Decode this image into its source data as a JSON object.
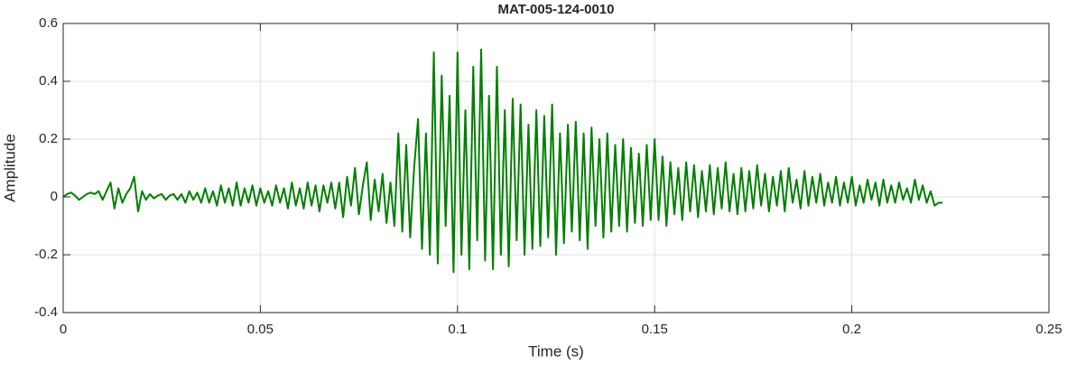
{
  "chart_data": {
    "type": "line",
    "title": "MAT-005-124-0010",
    "xlabel": "Time (s)",
    "ylabel": "Amplitude",
    "xlim": [
      0,
      0.25
    ],
    "ylim": [
      -0.4,
      0.6
    ],
    "xticks": [
      0,
      0.05,
      0.1,
      0.15,
      0.2,
      0.25
    ],
    "yticks": [
      -0.4,
      -0.2,
      0,
      0.2,
      0.4,
      0.6
    ],
    "grid": true,
    "x": [
      0,
      0.001,
      0.002,
      0.003,
      0.004,
      0.005,
      0.006,
      0.007,
      0.008,
      0.009,
      0.01,
      0.011,
      0.012,
      0.013,
      0.014,
      0.015,
      0.016,
      0.017,
      0.018,
      0.019,
      0.02,
      0.021,
      0.022,
      0.023,
      0.024,
      0.025,
      0.026,
      0.027,
      0.028,
      0.029,
      0.03,
      0.031,
      0.032,
      0.033,
      0.034,
      0.035,
      0.036,
      0.037,
      0.038,
      0.039,
      0.04,
      0.041,
      0.042,
      0.043,
      0.044,
      0.045,
      0.046,
      0.047,
      0.048,
      0.049,
      0.05,
      0.051,
      0.052,
      0.053,
      0.054,
      0.055,
      0.056,
      0.057,
      0.058,
      0.059,
      0.06,
      0.061,
      0.062,
      0.063,
      0.064,
      0.065,
      0.066,
      0.067,
      0.068,
      0.069,
      0.07,
      0.071,
      0.072,
      0.073,
      0.074,
      0.075,
      0.076,
      0.077,
      0.078,
      0.079,
      0.08,
      0.081,
      0.082,
      0.083,
      0.084,
      0.085,
      0.086,
      0.087,
      0.088,
      0.089,
      0.09,
      0.091,
      0.092,
      0.093,
      0.094,
      0.095,
      0.096,
      0.097,
      0.098,
      0.099,
      0.1,
      0.101,
      0.102,
      0.103,
      0.104,
      0.105,
      0.106,
      0.107,
      0.108,
      0.109,
      0.11,
      0.111,
      0.112,
      0.113,
      0.114,
      0.115,
      0.116,
      0.117,
      0.118,
      0.119,
      0.12,
      0.121,
      0.122,
      0.123,
      0.124,
      0.125,
      0.126,
      0.127,
      0.128,
      0.129,
      0.13,
      0.131,
      0.132,
      0.133,
      0.134,
      0.135,
      0.136,
      0.137,
      0.138,
      0.139,
      0.14,
      0.141,
      0.142,
      0.143,
      0.144,
      0.145,
      0.146,
      0.147,
      0.148,
      0.149,
      0.15,
      0.151,
      0.152,
      0.153,
      0.154,
      0.155,
      0.156,
      0.157,
      0.158,
      0.159,
      0.16,
      0.161,
      0.162,
      0.163,
      0.164,
      0.165,
      0.166,
      0.167,
      0.168,
      0.169,
      0.17,
      0.171,
      0.172,
      0.173,
      0.174,
      0.175,
      0.176,
      0.177,
      0.178,
      0.179,
      0.18,
      0.181,
      0.182,
      0.183,
      0.184,
      0.185,
      0.186,
      0.187,
      0.188,
      0.189,
      0.19,
      0.191,
      0.192,
      0.193,
      0.194,
      0.195,
      0.196,
      0.197,
      0.198,
      0.199,
      0.2,
      0.201,
      0.202,
      0.203,
      0.204,
      0.205,
      0.206,
      0.207,
      0.208,
      0.209,
      0.21,
      0.211,
      0.212,
      0.213,
      0.214,
      0.215,
      0.216,
      0.217,
      0.218,
      0.219,
      0.22,
      0.221,
      0.222,
      0.223
    ],
    "series": [
      {
        "color": "#007f00",
        "values": [
          0,
          0.01,
          0.015,
          0.005,
          -0.01,
          0,
          0.01,
          0.015,
          0.01,
          0.02,
          -0.01,
          0.02,
          0.05,
          -0.04,
          0.03,
          -0.02,
          0.01,
          0.03,
          0.07,
          -0.05,
          0.02,
          -0.01,
          0.01,
          -0.005,
          0.005,
          0.01,
          -0.01,
          0.005,
          0.01,
          -0.01,
          0.01,
          -0.02,
          0.02,
          -0.01,
          0.015,
          -0.02,
          0.03,
          -0.02,
          0.02,
          -0.03,
          0.04,
          -0.02,
          0.03,
          -0.03,
          0.05,
          -0.03,
          0.03,
          -0.02,
          0.04,
          -0.03,
          0.03,
          -0.02,
          0.02,
          -0.03,
          0.04,
          -0.02,
          0.03,
          -0.04,
          0.05,
          -0.03,
          0.03,
          -0.04,
          0.05,
          -0.03,
          0.04,
          -0.05,
          0.04,
          -0.02,
          0.05,
          -0.04,
          0.05,
          -0.07,
          0.07,
          -0.03,
          0.1,
          -0.06,
          0.04,
          0.12,
          -0.08,
          0.06,
          -0.05,
          0.08,
          -0.09,
          0.05,
          -0.1,
          0.22,
          -0.12,
          0.18,
          -0.14,
          0.1,
          0.27,
          -0.18,
          0.22,
          -0.2,
          0.5,
          -0.23,
          0.42,
          -0.1,
          0.35,
          -0.26,
          0.5,
          -0.2,
          0.3,
          -0.25,
          0.45,
          -0.15,
          0.51,
          -0.22,
          0.35,
          -0.25,
          0.45,
          -0.2,
          0.3,
          -0.24,
          0.34,
          -0.15,
          0.32,
          -0.2,
          0.25,
          -0.18,
          0.3,
          -0.17,
          0.28,
          -0.14,
          0.32,
          -0.2,
          0.22,
          -0.16,
          0.25,
          -0.12,
          0.26,
          -0.15,
          0.22,
          -0.18,
          0.24,
          -0.1,
          0.2,
          -0.14,
          0.22,
          -0.12,
          0.18,
          -0.1,
          0.2,
          -0.12,
          0.17,
          -0.09,
          0.15,
          -0.1,
          0.18,
          -0.08,
          0.2,
          -0.08,
          0.14,
          -0.1,
          0.12,
          -0.06,
          0.1,
          -0.08,
          0.12,
          -0.05,
          0.11,
          -0.07,
          0.09,
          -0.05,
          0.11,
          -0.06,
          0.1,
          -0.04,
          0.12,
          -0.05,
          0.08,
          -0.06,
          0.1,
          -0.05,
          0.09,
          -0.04,
          0.11,
          -0.03,
          0.08,
          -0.05,
          0.07,
          -0.03,
          0.09,
          -0.05,
          0.1,
          -0.02,
          0.06,
          -0.04,
          0.09,
          -0.03,
          0.07,
          -0.02,
          0.08,
          -0.03,
          0.05,
          -0.02,
          0.07,
          -0.03,
          0.05,
          -0.02,
          0.07,
          -0.03,
          0.04,
          -0.02,
          0.06,
          -0.01,
          0.05,
          -0.03,
          0.06,
          -0.02,
          0.04,
          -0.02,
          0.05,
          -0.01,
          0.03,
          -0.02,
          0.06,
          -0.01,
          0.04,
          -0.02,
          0.02,
          -0.03,
          -0.02,
          -0.02
        ]
      }
    ]
  }
}
